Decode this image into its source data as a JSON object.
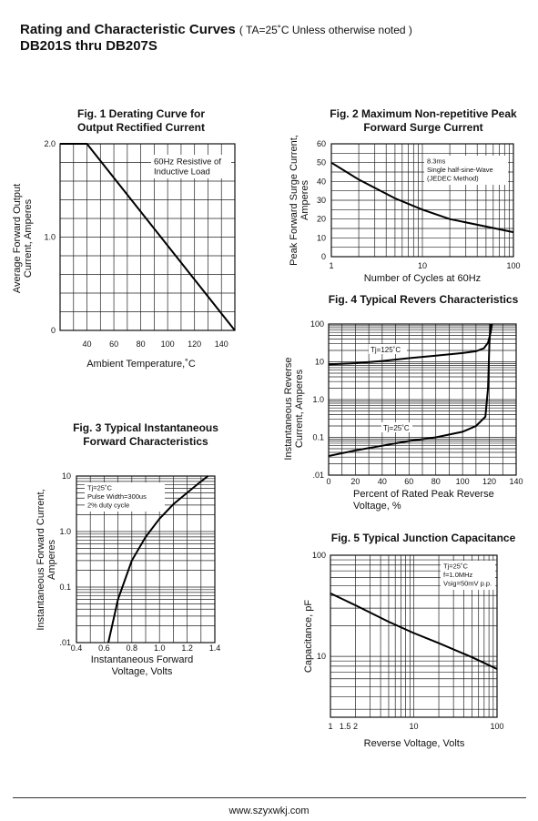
{
  "header": {
    "title": "Rating and Characteristic Curves",
    "note": "( TA=25˚C Unless otherwise noted )",
    "models": "DB201S thru DB207S"
  },
  "footer": {
    "website": "www.szyxwkj.com"
  },
  "chart_data": [
    {
      "id": "fig1",
      "type": "line",
      "title_lines": [
        "Fig. 1 Derating Curve for",
        "Output Rectified Current"
      ],
      "xlabel": "Ambient Temperature,˚C",
      "ylabel_lines": [
        "Average Forward Output",
        "Current, Amperes"
      ],
      "x_ticks": [
        "40",
        "60",
        "80",
        "100",
        "120",
        "140"
      ],
      "y_ticks": [
        "0",
        "1.0",
        "2.0"
      ],
      "xlim": [
        20,
        150
      ],
      "ylim": [
        0,
        2
      ],
      "annotation": [
        "60Hz Resistive of",
        "Inductive Load"
      ],
      "series": [
        {
          "x": [
            20,
            40,
            150
          ],
          "y": [
            2.0,
            2.0,
            0
          ]
        }
      ]
    },
    {
      "id": "fig2",
      "type": "line",
      "xscale": "log",
      "title_lines": [
        "Fig. 2 Maximum Non-repetitive Peak",
        "Forward Surge Current"
      ],
      "xlabel": "Number of Cycles at 60Hz",
      "ylabel_lines": [
        "Peak Forward Surge Current,",
        "Amperes"
      ],
      "x_ticks": [
        "1",
        "10",
        "100"
      ],
      "y_ticks": [
        "0",
        "10",
        "20",
        "30",
        "40",
        "50",
        "60"
      ],
      "xlim": [
        1,
        100
      ],
      "ylim": [
        0,
        60
      ],
      "annotation": [
        "8.3ms",
        "Single half-sine-Wave",
        "(JEDEC Method)"
      ],
      "series": [
        {
          "x": [
            1,
            2,
            5,
            10,
            20,
            50,
            100
          ],
          "y": [
            50,
            41,
            31,
            25,
            20,
            16,
            13
          ]
        }
      ]
    },
    {
      "id": "fig3",
      "type": "line",
      "yscale": "log",
      "title_lines": [
        "Fig. 3 Typical Instantaneous",
        "Forward Characteristics"
      ],
      "xlabel_lines": [
        "Instantaneous Forward",
        "Voltage, Volts"
      ],
      "ylabel_lines": [
        "Instantaneous Forward Current,",
        "Amperes"
      ],
      "x_ticks": [
        "0.4",
        "0.6",
        "0.8",
        "1.0",
        "1.2",
        "1.4"
      ],
      "y_ticks": [
        ".01",
        "0.1",
        "1.0",
        "10"
      ],
      "xlim": [
        0.4,
        1.4
      ],
      "ylim": [
        0.01,
        10
      ],
      "annotation": [
        "Tj=25˚C",
        "Pulse Width=300us",
        "2% duty cycle"
      ],
      "series": [
        {
          "x": [
            0.63,
            0.7,
            0.8,
            0.9,
            1.0,
            1.1,
            1.2,
            1.3,
            1.35
          ],
          "y": [
            0.01,
            0.06,
            0.3,
            0.8,
            1.7,
            3.1,
            5.0,
            8.0,
            10.0
          ]
        }
      ]
    },
    {
      "id": "fig4",
      "type": "line",
      "yscale": "log",
      "title_lines": [
        "Fig. 4 Typical Revers Characteristics"
      ],
      "xlabel_lines": [
        "Percent of Rated Peak Reverse",
        "Voltage, %"
      ],
      "ylabel_lines": [
        "Instantaneous Reverse",
        "Current, Amperes"
      ],
      "x_ticks": [
        "0",
        "20",
        "40",
        "60",
        "80",
        "100",
        "120",
        "140"
      ],
      "y_ticks": [
        ".01",
        "0.1",
        "1.0",
        "10",
        "100"
      ],
      "xlim": [
        0,
        140
      ],
      "ylim": [
        0.01,
        100
      ],
      "series": [
        {
          "name": "Tj=125˚C",
          "x": [
            0,
            20,
            40,
            60,
            80,
            100,
            110,
            116,
            119,
            121,
            122
          ],
          "y": [
            8.5,
            9.2,
            10.5,
            12.5,
            14.5,
            17,
            19,
            23,
            32,
            60,
            100
          ]
        },
        {
          "name": "Tj=25˚C",
          "x": [
            0,
            20,
            40,
            60,
            80,
            100,
            110,
            117,
            119,
            120,
            121
          ],
          "y": [
            0.032,
            0.045,
            0.06,
            0.08,
            0.1,
            0.14,
            0.2,
            0.35,
            2.0,
            30,
            100
          ]
        }
      ]
    },
    {
      "id": "fig5",
      "type": "line",
      "xscale": "log",
      "yscale": "log",
      "title_lines": [
        "Fig. 5 Typical Junction Capacitance"
      ],
      "xlabel": "Reverse Voltage, Volts",
      "ylabel_lines": [
        "Capacitance, pF"
      ],
      "x_ticks": [
        "1",
        "1.5",
        "2",
        "10",
        "100"
      ],
      "y_ticks": [
        "10",
        "100"
      ],
      "xlim": [
        1,
        100
      ],
      "ylim": [
        2.5,
        100
      ],
      "annotation": [
        "Tj=25˚C",
        "f=1.0MHz",
        "Vsig=50mV p.p."
      ],
      "series": [
        {
          "x": [
            1,
            2,
            5,
            10,
            20,
            50,
            100
          ],
          "y": [
            42,
            32,
            22,
            17,
            13.5,
            9.8,
            7.5
          ]
        }
      ]
    }
  ]
}
